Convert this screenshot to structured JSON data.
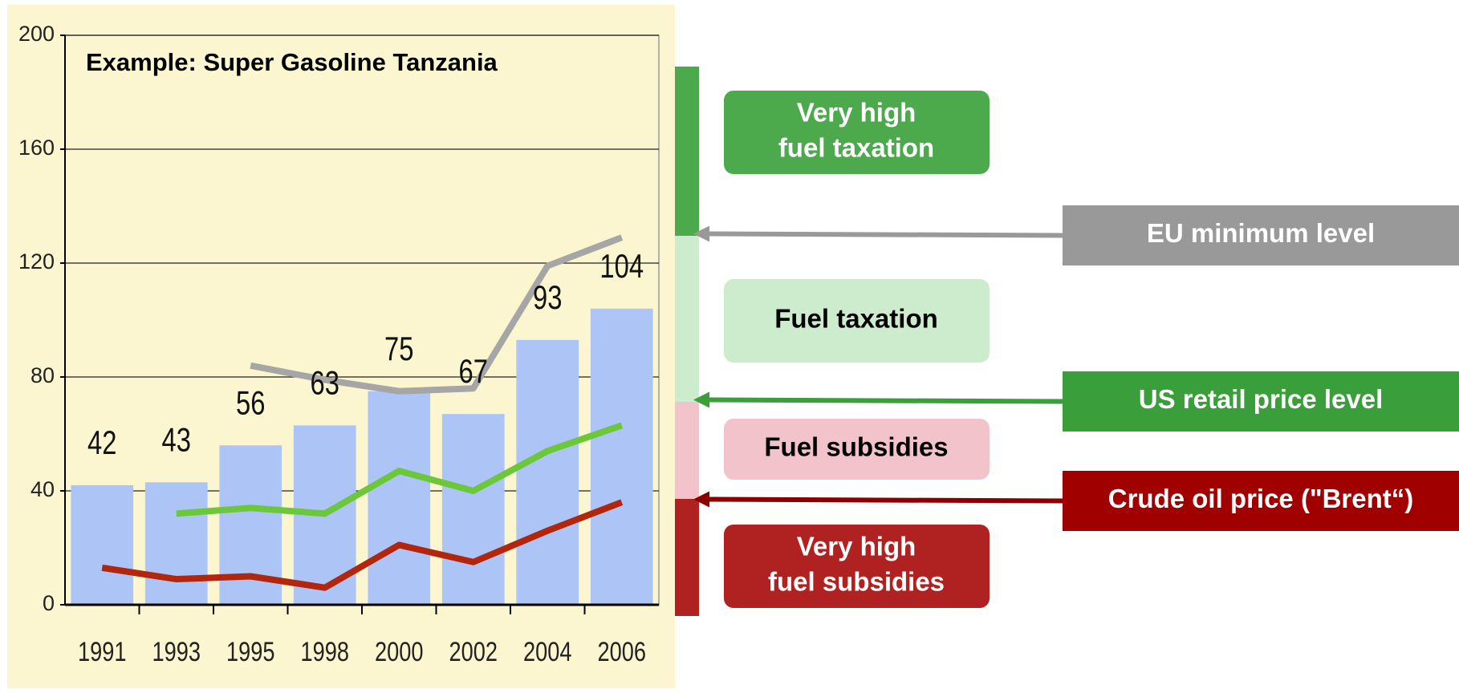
{
  "chart_data": {
    "type": "bar",
    "title": "Example: Super Gasoline Tanzania",
    "categories": [
      "1991",
      "1993",
      "1995",
      "1998",
      "2000",
      "2002",
      "2004",
      "2006"
    ],
    "values": [
      42,
      43,
      56,
      63,
      75,
      67,
      93,
      104
    ],
    "color": "#adc5f6",
    "ylim": [
      0,
      200
    ],
    "yticks": [
      0,
      40,
      80,
      120,
      160,
      200
    ],
    "grid": true,
    "series": [
      {
        "name": "EU minimum level",
        "color": "#a6a6a6",
        "label_color": "#999999",
        "arrow_color": "#999999",
        "values": [
          null,
          null,
          84,
          79,
          75,
          76,
          119,
          129
        ]
      },
      {
        "name": "US retail price level",
        "color": "#6cc83a",
        "label_color": "#3a9e3a",
        "arrow_color": "#3a9e3a",
        "values": [
          null,
          32,
          34,
          32,
          47,
          40,
          54,
          63
        ]
      },
      {
        "name": "Crude oil price (\"Brent“)",
        "color": "#b3260e",
        "label_color": "#a00000",
        "arrow_color": "#8b0000",
        "values": [
          13,
          9,
          10,
          6,
          21,
          15,
          26,
          36
        ]
      }
    ],
    "zones": [
      {
        "label": [
          "Very high",
          "fuel taxation"
        ],
        "color": "#4caa4c",
        "text_color": "#ffffff"
      },
      {
        "label": [
          "Fuel taxation"
        ],
        "color": "#cdeccd",
        "text_color": "#000000"
      },
      {
        "label": [
          "Fuel subsidies"
        ],
        "color": "#f3c3cb",
        "text_color": "#000000"
      },
      {
        "label": [
          "Very high",
          "fuel subsidies"
        ],
        "color": "#b02222",
        "text_color": "#ffffff"
      }
    ]
  }
}
